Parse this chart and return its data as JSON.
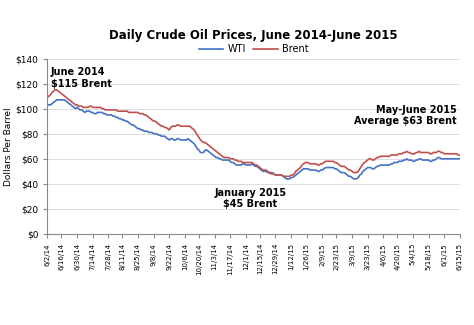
{
  "title": "Daily Crude Oil Prices, June 2014-June 2015",
  "ylabel": "Dollars Per Barrel",
  "background_color": "#ffffff",
  "wti_color": "#4472c4",
  "brent_color": "#c0504d",
  "ylim": [
    0,
    140
  ],
  "yticks": [
    0,
    20,
    40,
    60,
    80,
    100,
    120,
    140
  ],
  "ytick_labels": [
    "$0",
    "$20",
    "$40",
    "$60",
    "$80",
    "$100",
    "$120",
    "$140"
  ],
  "annotation_june2014": "June 2014\n$115 Brent",
  "annotation_jan2015": "January 2015\n$45 Brent",
  "annotation_mayjune2015": "May-June 2015\nAverage $63 Brent",
  "legend_wti": "WTI",
  "legend_brent": "Brent",
  "wti_data": [
    103,
    103,
    103,
    104,
    105,
    106,
    107,
    107,
    107,
    107,
    107,
    107,
    106,
    105,
    104,
    103,
    102,
    101,
    100,
    101,
    100,
    99,
    99,
    98,
    97,
    98,
    98,
    98,
    97,
    97,
    96,
    96,
    97,
    97,
    97,
    97,
    96,
    96,
    95,
    95,
    95,
    95,
    94,
    94,
    93,
    93,
    92,
    92,
    91,
    91,
    90,
    90,
    89,
    88,
    87,
    87,
    86,
    85,
    84,
    84,
    83,
    83,
    82,
    82,
    82,
    81,
    81,
    81,
    80,
    80,
    80,
    79,
    79,
    78,
    78,
    78,
    77,
    76,
    75,
    76,
    76,
    75,
    75,
    76,
    76,
    75,
    75,
    75,
    75,
    75,
    76,
    75,
    74,
    73,
    72,
    70,
    68,
    67,
    65,
    65,
    65,
    67,
    67,
    66,
    65,
    64,
    63,
    62,
    61,
    61,
    60,
    60,
    59,
    59,
    59,
    59,
    59,
    58,
    57,
    57,
    56,
    55,
    55,
    55,
    55,
    56,
    56,
    55,
    55,
    55,
    55,
    56,
    55,
    54,
    54,
    53,
    52,
    51,
    50,
    50,
    50,
    49,
    49,
    49,
    49,
    48,
    47,
    47,
    47,
    47,
    47,
    46,
    45,
    44,
    44,
    44,
    45,
    45,
    46,
    47,
    48,
    49,
    50,
    51,
    52,
    52,
    52,
    52,
    51,
    51,
    51,
    51,
    51,
    50,
    50,
    51,
    51,
    52,
    53,
    53,
    53,
    53,
    53,
    53,
    52,
    52,
    51,
    50,
    49,
    49,
    49,
    48,
    47,
    46,
    46,
    45,
    44,
    44,
    44,
    45,
    47,
    48,
    50,
    51,
    52,
    53,
    53,
    53,
    52,
    52,
    53,
    54,
    54,
    55,
    55,
    55,
    55,
    55,
    55,
    55,
    56,
    56,
    57,
    57,
    57,
    58,
    58,
    58,
    59,
    59,
    60,
    59,
    59,
    59,
    58,
    58,
    59,
    59,
    60,
    60,
    59,
    59,
    59,
    59,
    59,
    58,
    58,
    59,
    59,
    60,
    61,
    61,
    60,
    60,
    60,
    60,
    60,
    60,
    60,
    60,
    60,
    60,
    60,
    60,
    60
  ],
  "brent_data": [
    109,
    110,
    111,
    113,
    114,
    115,
    115,
    114,
    113,
    112,
    111,
    110,
    109,
    108,
    107,
    106,
    105,
    104,
    103,
    103,
    102,
    102,
    102,
    101,
    101,
    101,
    101,
    102,
    102,
    101,
    101,
    101,
    101,
    101,
    101,
    100,
    100,
    99,
    99,
    99,
    99,
    99,
    99,
    99,
    99,
    98,
    98,
    98,
    98,
    98,
    98,
    98,
    97,
    97,
    97,
    97,
    97,
    97,
    97,
    96,
    96,
    96,
    95,
    95,
    94,
    93,
    92,
    91,
    90,
    90,
    89,
    88,
    87,
    86,
    86,
    85,
    85,
    84,
    83,
    85,
    86,
    86,
    86,
    87,
    87,
    86,
    86,
    86,
    86,
    86,
    86,
    86,
    85,
    84,
    83,
    81,
    79,
    77,
    75,
    74,
    73,
    73,
    72,
    71,
    70,
    69,
    68,
    67,
    66,
    65,
    64,
    63,
    62,
    61,
    61,
    61,
    61,
    60,
    60,
    60,
    59,
    59,
    58,
    58,
    58,
    57,
    57,
    57,
    57,
    57,
    57,
    57,
    56,
    55,
    55,
    54,
    53,
    52,
    51,
    51,
    51,
    50,
    49,
    48,
    48,
    48,
    47,
    47,
    47,
    47,
    47,
    46,
    46,
    46,
    46,
    46,
    47,
    47,
    48,
    50,
    51,
    52,
    53,
    55,
    56,
    57,
    57,
    57,
    56,
    56,
    56,
    56,
    56,
    55,
    55,
    56,
    56,
    57,
    58,
    58,
    58,
    58,
    58,
    58,
    57,
    57,
    56,
    55,
    54,
    54,
    54,
    53,
    52,
    51,
    51,
    50,
    49,
    49,
    49,
    50,
    52,
    54,
    56,
    57,
    58,
    59,
    60,
    60,
    59,
    59,
    60,
    61,
    61,
    62,
    62,
    62,
    62,
    62,
    62,
    62,
    63,
    63,
    63,
    63,
    63,
    64,
    64,
    64,
    65,
    65,
    66,
    65,
    65,
    64,
    64,
    64,
    65,
    65,
    66,
    65,
    65,
    65,
    65,
    65,
    65,
    64,
    64,
    65,
    65,
    65,
    66,
    66,
    65,
    65,
    64,
    64,
    64,
    64,
    64,
    64,
    64,
    64,
    64,
    63,
    63
  ],
  "x_tick_labels": [
    "6/2/14",
    "6/16/14",
    "6/30/14",
    "7/14/14",
    "7/28/14",
    "8/11/14",
    "8/25/14",
    "9/8/14",
    "9/22/14",
    "10/6/14",
    "10/20/14",
    "11/3/14",
    "11/17/14",
    "12/1/14",
    "12/15/14",
    "12/29/14",
    "1/12/15",
    "1/26/15",
    "2/9/15",
    "2/23/15",
    "3/9/15",
    "3/23/15",
    "4/6/15",
    "4/20/15",
    "5/4/15",
    "5/18/15",
    "6/1/15",
    "6/15/15"
  ]
}
